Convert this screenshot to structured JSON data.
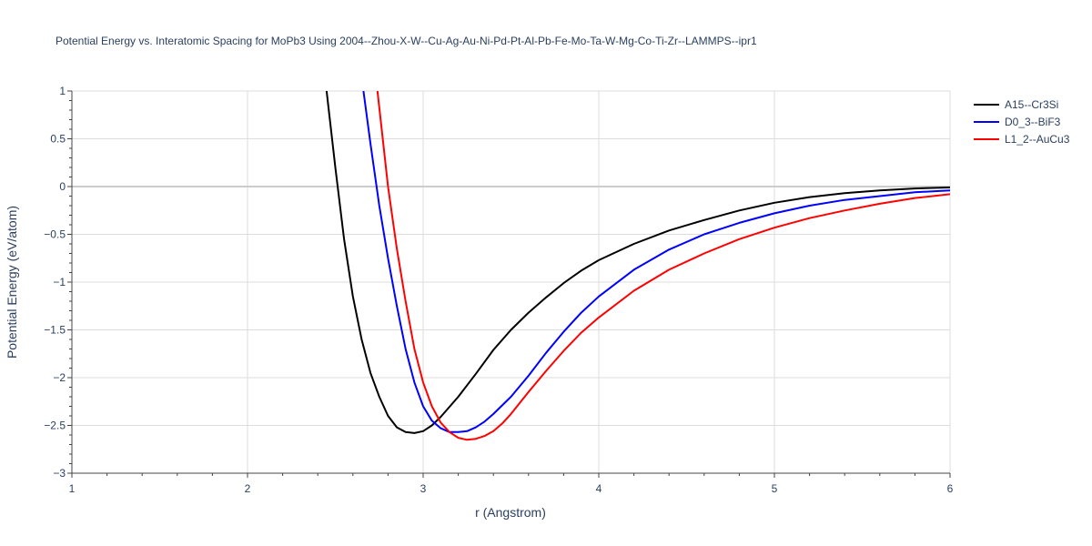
{
  "chart_data": {
    "type": "line",
    "title": "Potential Energy vs. Interatomic Spacing for MoPb3 Using 2004--Zhou-X-W--Cu-Ag-Au-Ni-Pd-Pt-Al-Pb-Fe-Mo-Ta-W-Mg-Co-Ti-Zr--LAMMPS--ipr1",
    "xlabel": "r (Angstrom)",
    "ylabel": "Potential Energy (eV/atom)",
    "xlim": [
      1,
      6
    ],
    "ylim": [
      -3,
      1
    ],
    "xticks": [
      1,
      2,
      3,
      4,
      5,
      6
    ],
    "xtick_labels": [
      "1",
      "2",
      "3",
      "4",
      "5",
      "6"
    ],
    "yticks": [
      1,
      0.5,
      0,
      -0.5,
      -1,
      -1.5,
      -2,
      -2.5,
      -3
    ],
    "ytick_labels": [
      "1",
      "0.5",
      "0",
      "−0.5",
      "−1",
      "−1.5",
      "−2",
      "−2.5",
      "−3"
    ],
    "grid": true,
    "legend_position": "top-right",
    "series": [
      {
        "name": "A15--Cr3Si",
        "color": "#000000",
        "x": [
          2.45,
          2.5,
          2.55,
          2.6,
          2.65,
          2.7,
          2.75,
          2.8,
          2.85,
          2.9,
          2.95,
          3.0,
          3.05,
          3.1,
          3.2,
          3.3,
          3.4,
          3.5,
          3.6,
          3.7,
          3.8,
          3.9,
          4.0,
          4.2,
          4.4,
          4.6,
          4.8,
          5.0,
          5.2,
          5.4,
          5.6,
          5.8,
          6.0
        ],
        "y": [
          1.0,
          0.2,
          -0.55,
          -1.15,
          -1.6,
          -1.95,
          -2.2,
          -2.4,
          -2.52,
          -2.57,
          -2.58,
          -2.56,
          -2.5,
          -2.41,
          -2.2,
          -1.96,
          -1.71,
          -1.5,
          -1.32,
          -1.16,
          -1.01,
          -0.88,
          -0.77,
          -0.6,
          -0.46,
          -0.35,
          -0.25,
          -0.17,
          -0.11,
          -0.07,
          -0.04,
          -0.02,
          -0.01
        ]
      },
      {
        "name": "D0_3--BiF3",
        "color": "#0000ff",
        "x": [
          2.66,
          2.7,
          2.75,
          2.8,
          2.85,
          2.9,
          2.95,
          3.0,
          3.05,
          3.1,
          3.15,
          3.2,
          3.25,
          3.3,
          3.35,
          3.4,
          3.5,
          3.6,
          3.7,
          3.8,
          3.9,
          4.0,
          4.2,
          4.4,
          4.6,
          4.8,
          5.0,
          5.2,
          5.4,
          5.6,
          5.8,
          6.0
        ],
        "y": [
          1.0,
          0.45,
          -0.2,
          -0.75,
          -1.25,
          -1.7,
          -2.05,
          -2.3,
          -2.45,
          -2.53,
          -2.57,
          -2.57,
          -2.56,
          -2.52,
          -2.46,
          -2.38,
          -2.2,
          -1.98,
          -1.74,
          -1.52,
          -1.32,
          -1.15,
          -0.87,
          -0.66,
          -0.5,
          -0.38,
          -0.28,
          -0.2,
          -0.14,
          -0.1,
          -0.06,
          -0.04
        ]
      },
      {
        "name": "L1_2--AuCu3",
        "color": "#ff0000",
        "x": [
          2.74,
          2.8,
          2.85,
          2.9,
          2.95,
          3.0,
          3.05,
          3.1,
          3.15,
          3.2,
          3.25,
          3.3,
          3.35,
          3.4,
          3.45,
          3.5,
          3.6,
          3.7,
          3.8,
          3.9,
          4.0,
          4.2,
          4.4,
          4.6,
          4.8,
          5.0,
          5.2,
          5.4,
          5.6,
          5.8,
          6.0
        ],
        "y": [
          1.0,
          0.0,
          -0.65,
          -1.2,
          -1.7,
          -2.05,
          -2.3,
          -2.47,
          -2.57,
          -2.63,
          -2.65,
          -2.64,
          -2.61,
          -2.56,
          -2.48,
          -2.38,
          -2.15,
          -1.93,
          -1.72,
          -1.53,
          -1.37,
          -1.09,
          -0.87,
          -0.7,
          -0.55,
          -0.43,
          -0.33,
          -0.25,
          -0.18,
          -0.12,
          -0.08
        ]
      }
    ]
  }
}
